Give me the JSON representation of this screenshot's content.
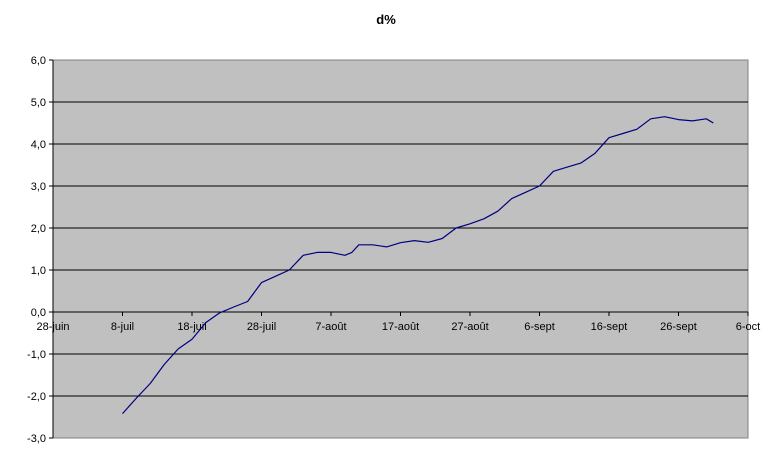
{
  "chart_data": {
    "type": "line",
    "title": "d%",
    "xlabel": "",
    "ylabel": "",
    "xlim": [
      "2020-06-28",
      "2020-10-06"
    ],
    "ylim": [
      -3.0,
      6.0
    ],
    "x_ticks": [
      "2020-06-28",
      "2020-07-08",
      "2020-07-18",
      "2020-07-28",
      "2020-08-07",
      "2020-08-17",
      "2020-08-27",
      "2020-09-06",
      "2020-09-16",
      "2020-09-26",
      "2020-10-06"
    ],
    "x_tick_labels": [
      "28-juin",
      "8-juil",
      "18-juil",
      "28-juil",
      "7-août",
      "17-août",
      "27-août",
      "6-sept",
      "16-sept",
      "26-sept",
      "6-oct"
    ],
    "y_ticks": [
      -3.0,
      -2.0,
      -1.0,
      0.0,
      1.0,
      2.0,
      3.0,
      4.0,
      5.0,
      6.0
    ],
    "y_tick_labels": [
      "-3,0",
      "-2,0",
      "-1,0",
      "0,0",
      "1,0",
      "2,0",
      "3,0",
      "4,0",
      "5,0",
      "6,0"
    ],
    "grid": "horizontal",
    "legend": "none",
    "colors": {
      "plot_bg": "#c0c0c0",
      "line": "#000080",
      "grid": "#000000"
    },
    "series": [
      {
        "x": [
          "2020-07-08",
          "2020-07-10",
          "2020-07-12",
          "2020-07-14",
          "2020-07-16",
          "2020-07-18",
          "2020-07-20",
          "2020-07-22",
          "2020-07-24",
          "2020-07-26",
          "2020-07-28",
          "2020-07-30",
          "2020-08-01",
          "2020-08-03",
          "2020-08-05",
          "2020-08-07",
          "2020-08-09",
          "2020-08-10",
          "2020-08-11",
          "2020-08-13",
          "2020-08-15",
          "2020-08-17",
          "2020-08-19",
          "2020-08-21",
          "2020-08-23",
          "2020-08-25",
          "2020-08-27",
          "2020-08-29",
          "2020-08-31",
          "2020-09-02",
          "2020-09-04",
          "2020-09-06",
          "2020-09-08",
          "2020-09-10",
          "2020-09-12",
          "2020-09-14",
          "2020-09-16",
          "2020-09-18",
          "2020-09-20",
          "2020-09-22",
          "2020-09-24",
          "2020-09-26",
          "2020-09-28",
          "2020-09-30",
          "2020-10-01"
        ],
        "values": [
          -2.42,
          -2.05,
          -1.7,
          -1.25,
          -0.88,
          -0.65,
          -0.25,
          -0.02,
          0.12,
          0.25,
          0.7,
          0.85,
          1.0,
          1.35,
          1.42,
          1.42,
          1.35,
          1.42,
          1.6,
          1.6,
          1.55,
          1.65,
          1.7,
          1.66,
          1.75,
          2.0,
          2.1,
          2.22,
          2.4,
          2.7,
          2.85,
          3.0,
          3.35,
          3.45,
          3.55,
          3.78,
          4.15,
          4.25,
          4.35,
          4.6,
          4.65,
          4.58,
          4.55,
          4.6,
          4.5
        ]
      }
    ]
  }
}
